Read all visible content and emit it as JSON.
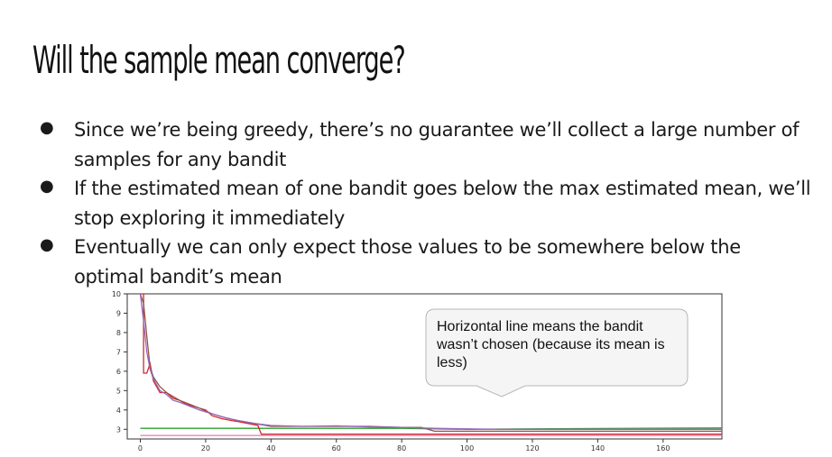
{
  "slide": {
    "title": "Will the sample mean converge?",
    "bullets": [
      "Since we’re being greedy, there’s no guarantee we’ll collect a large number of samples for any bandit",
      "If the estimated mean of one bandit goes below the max estimated mean, we’ll stop exploring it immediately",
      "Eventually we can only expect those values to be somewhere below the optimal bandit’s mean"
    ],
    "callout": "Horizontal line means the bandit wasn’t chosen (because its mean is less)"
  },
  "chart_data": {
    "type": "line",
    "title": "",
    "xlabel": "",
    "ylabel": "",
    "xlim": [
      -4,
      178
    ],
    "ylim": [
      2.5,
      10
    ],
    "xticks": [
      0,
      20,
      40,
      60,
      80,
      100,
      120,
      140,
      160
    ],
    "yticks": [
      3,
      4,
      5,
      6,
      7,
      8,
      9,
      10
    ],
    "grid": false,
    "legend": "none",
    "series": [
      {
        "color": "#2ca02c",
        "x": [
          0,
          10,
          20,
          30,
          40,
          60,
          80,
          100,
          120,
          140,
          160,
          178
        ],
        "y": [
          3.05,
          3.05,
          3.05,
          3.05,
          3.05,
          3.05,
          3.05,
          3.0,
          3.02,
          3.04,
          3.06,
          3.07
        ]
      },
      {
        "color": "#d62728",
        "x": [
          0,
          1,
          1,
          2,
          3,
          4,
          6,
          8,
          10,
          12,
          14,
          16,
          18,
          20,
          22,
          25,
          28,
          30,
          33,
          36,
          37,
          40,
          60,
          80,
          100,
          120,
          140,
          160,
          178
        ],
        "y": [
          10,
          10,
          5.9,
          5.9,
          6.4,
          5.5,
          4.9,
          4.9,
          4.6,
          4.5,
          4.3,
          4.2,
          4.1,
          4.0,
          3.7,
          3.55,
          3.45,
          3.4,
          3.3,
          3.2,
          2.75,
          2.75,
          2.75,
          2.75,
          2.75,
          2.75,
          2.75,
          2.75,
          2.75
        ]
      },
      {
        "color": "#8c564b",
        "x": [
          0,
          1,
          2,
          3,
          4,
          6,
          8,
          10,
          12,
          15,
          18,
          22,
          26,
          30,
          35,
          40,
          50,
          60,
          70,
          80,
          86,
          90,
          100,
          120,
          140,
          160,
          178
        ],
        "y": [
          10,
          9.5,
          7.8,
          6.2,
          5.7,
          5.2,
          4.9,
          4.7,
          4.5,
          4.3,
          4.1,
          3.8,
          3.6,
          3.45,
          3.3,
          3.15,
          3.15,
          3.15,
          3.15,
          3.1,
          3.1,
          2.9,
          2.9,
          2.9,
          2.9,
          2.9,
          2.9
        ]
      },
      {
        "color": "#9467bd",
        "x": [
          0,
          1,
          2,
          3,
          4,
          6,
          8,
          10,
          12,
          15,
          18,
          22,
          26,
          30,
          35,
          40,
          50,
          60,
          70,
          80,
          90,
          100,
          110,
          120,
          130,
          140,
          150,
          160,
          170,
          178
        ],
        "y": [
          10,
          8.6,
          7.0,
          6.1,
          5.6,
          5.0,
          4.8,
          4.5,
          4.4,
          4.2,
          4.0,
          3.8,
          3.6,
          3.45,
          3.3,
          3.2,
          3.15,
          3.18,
          3.12,
          3.1,
          3.05,
          3.02,
          3.0,
          3.0,
          3.0,
          3.0,
          3.0,
          3.0,
          3.0,
          3.0
        ]
      },
      {
        "color": "#e377c2",
        "x": [
          0,
          60,
          80,
          100,
          120,
          140,
          160,
          178
        ],
        "y": [
          2.68,
          2.68,
          2.68,
          2.68,
          2.68,
          2.68,
          2.68,
          2.68
        ]
      }
    ]
  }
}
